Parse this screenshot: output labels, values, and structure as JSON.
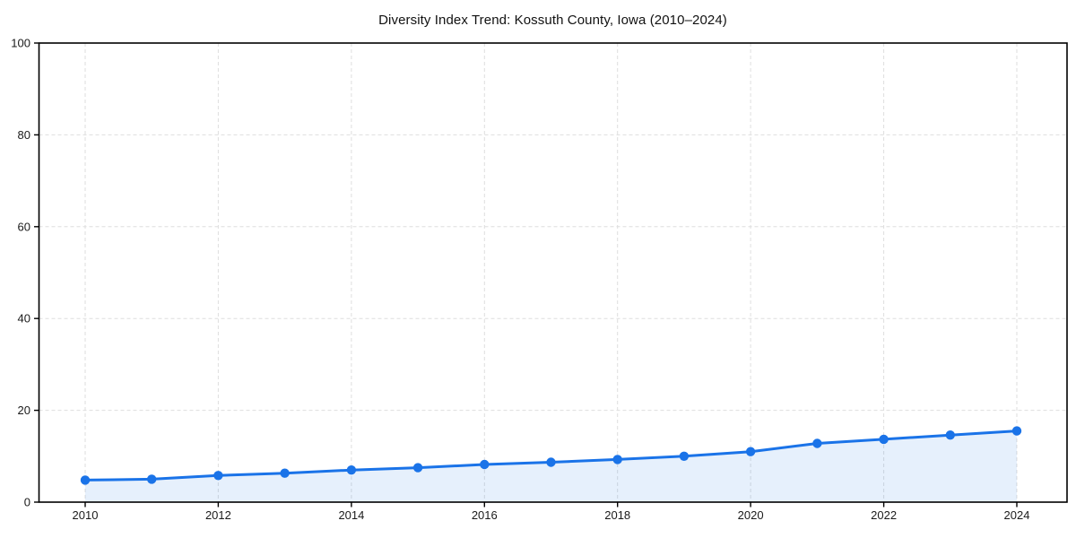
{
  "window": {
    "background": "#ffffff"
  },
  "colors": {
    "line": "#1a73e8",
    "area_fill": "#1a73e8",
    "grid": "#dedede",
    "spine": "#000000",
    "tick_text": "#1a1a1a",
    "title_text": "#111111"
  },
  "chart_data": {
    "type": "line",
    "title": "Diversity Index Trend: Kossuth County, Iowa (2010–2024)",
    "x": [
      2010,
      2011,
      2012,
      2013,
      2014,
      2015,
      2016,
      2017,
      2018,
      2019,
      2020,
      2021,
      2022,
      2023,
      2024
    ],
    "series": [
      {
        "name": "Diversity Index",
        "values": [
          4.8,
          5.0,
          5.8,
          6.3,
          7.0,
          7.5,
          8.2,
          8.7,
          9.3,
          10.0,
          11.0,
          12.8,
          13.7,
          14.6,
          15.5
        ],
        "color": "#1a73e8",
        "marker": "circle",
        "area_fill": true,
        "fill_opacity": 0.11
      }
    ],
    "xlabel": "",
    "ylabel": "",
    "xticks": [
      2010,
      2012,
      2014,
      2016,
      2018,
      2020,
      2022,
      2024
    ],
    "yticks": [
      0,
      20,
      40,
      60,
      80,
      100
    ],
    "ylim": [
      0,
      100
    ],
    "grid": true,
    "grid_style": "dashed",
    "legend": "none"
  }
}
